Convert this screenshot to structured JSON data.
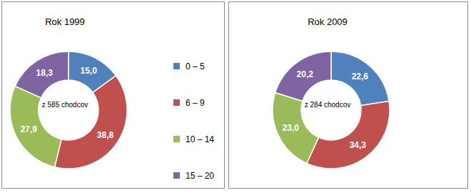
{
  "chart_data": [
    {
      "type": "pie",
      "title": "Rok 1999",
      "annotation": "z 585 chodcov",
      "categories": [
        "0 – 5",
        "6 – 9",
        "10 – 14",
        "15 – 20"
      ],
      "values": [
        15.0,
        38.8,
        27.9,
        18.3
      ],
      "value_labels": [
        "15,0",
        "38,8",
        "27,9",
        "18,3"
      ],
      "colors": [
        "#4f81bd",
        "#c0504d",
        "#9bbb59",
        "#8064a2"
      ],
      "data_labels": true,
      "legend": "right"
    },
    {
      "type": "pie",
      "title": "Rok 2009",
      "annotation": "z 284 chodcov",
      "values": [
        22.6,
        34.3,
        23.0,
        20.2
      ],
      "value_labels": [
        "22,6",
        "34,3",
        "23,0",
        "20,2"
      ],
      "colors": [
        "#4f81bd",
        "#c0504d",
        "#9bbb59",
        "#8064a2"
      ],
      "data_labels": true
    }
  ]
}
